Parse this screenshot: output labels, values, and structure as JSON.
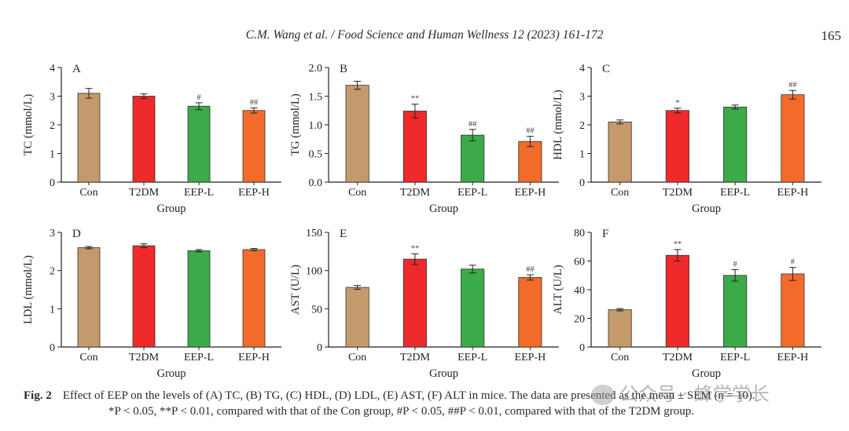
{
  "header": {
    "journal_line": "C.M. Wang et al. / Food Science and Human Wellness 12 (2023) 161-172",
    "page_number": "165"
  },
  "colors": {
    "Con": "#c49a6c",
    "T2DM": "#ee2a2a",
    "EEP-L": "#3aab48",
    "EEP-H": "#f26b2a"
  },
  "chart_data": [
    {
      "type": "bar",
      "panel": "A",
      "categories": [
        "Con",
        "T2DM",
        "EEP-L",
        "EEP-H"
      ],
      "values": [
        3.1,
        3.0,
        2.65,
        2.5
      ],
      "errors": [
        0.17,
        0.08,
        0.12,
        0.09
      ],
      "annotations": [
        "",
        "",
        "#",
        "##"
      ],
      "xlabel": "Group",
      "ylabel": "TC (mmol/L)",
      "ylim": [
        0,
        4
      ],
      "yticks": [
        "0",
        "1",
        "2",
        "3",
        "4"
      ]
    },
    {
      "type": "bar",
      "panel": "B",
      "categories": [
        "Con",
        "T2DM",
        "EEP-L",
        "EEP-H"
      ],
      "values": [
        1.69,
        1.24,
        0.82,
        0.71
      ],
      "errors": [
        0.07,
        0.12,
        0.1,
        0.09
      ],
      "annotations": [
        "",
        "**",
        "##",
        "##"
      ],
      "xlabel": "Group",
      "ylabel": "TG (mmol/L)",
      "ylim": [
        0,
        2.0
      ],
      "yticks": [
        "0.0",
        "0.5",
        "1.0",
        "1.5",
        "2.0"
      ]
    },
    {
      "type": "bar",
      "panel": "C",
      "categories": [
        "Con",
        "T2DM",
        "EEP-L",
        "EEP-H"
      ],
      "values": [
        2.1,
        2.5,
        2.62,
        3.05
      ],
      "errors": [
        0.07,
        0.08,
        0.07,
        0.15
      ],
      "annotations": [
        "",
        "*",
        "",
        "##"
      ],
      "xlabel": "Group",
      "ylabel": "HDL (mmol/L)",
      "ylim": [
        0,
        4
      ],
      "yticks": [
        "0",
        "1",
        "2",
        "3",
        "4"
      ]
    },
    {
      "type": "bar",
      "panel": "D",
      "categories": [
        "Con",
        "T2DM",
        "EEP-L",
        "EEP-H"
      ],
      "values": [
        2.6,
        2.65,
        2.52,
        2.55
      ],
      "errors": [
        0.03,
        0.05,
        0.03,
        0.03
      ],
      "annotations": [
        "",
        "",
        "",
        ""
      ],
      "xlabel": "Group",
      "ylabel": "LDL (mmol/L)",
      "ylim": [
        0,
        3
      ],
      "yticks": [
        "0",
        "1",
        "2",
        "3"
      ]
    },
    {
      "type": "bar",
      "panel": "E",
      "categories": [
        "Con",
        "T2DM",
        "EEP-L",
        "EEP-H"
      ],
      "values": [
        78,
        115,
        102,
        91
      ],
      "errors": [
        2.5,
        7,
        5,
        3.5
      ],
      "annotations": [
        "",
        "**",
        "",
        "##"
      ],
      "xlabel": "Group",
      "ylabel": "AST (U/L)",
      "ylim": [
        0,
        150
      ],
      "yticks": [
        "0",
        "50",
        "100",
        "150"
      ]
    },
    {
      "type": "bar",
      "panel": "F",
      "categories": [
        "Con",
        "T2DM",
        "EEP-L",
        "EEP-H"
      ],
      "values": [
        26,
        64,
        50,
        51
      ],
      "errors": [
        0.8,
        4,
        4,
        4.5
      ],
      "annotations": [
        "",
        "**",
        "#",
        "#"
      ],
      "xlabel": "Group",
      "ylabel": "ALT (U/L)",
      "ylim": [
        0,
        80
      ],
      "yticks": [
        "0",
        "20",
        "40",
        "60",
        "80"
      ]
    }
  ],
  "caption": {
    "label": "Fig. 2",
    "line1": "Effect of EEP on the levels of (A) TC, (B) TG, (C) HDL, (D) LDL, (E) AST, (F) ALT in mice. The data are presented as the mean ± SEM (n = 10).",
    "line2": "*P < 0.05, **P < 0.01, compared with that of the Con group, #P < 0.05, ##P < 0.01, compared with that of the T2DM group."
  },
  "watermark": {
    "text": "公众号 · 蜂学学长"
  }
}
